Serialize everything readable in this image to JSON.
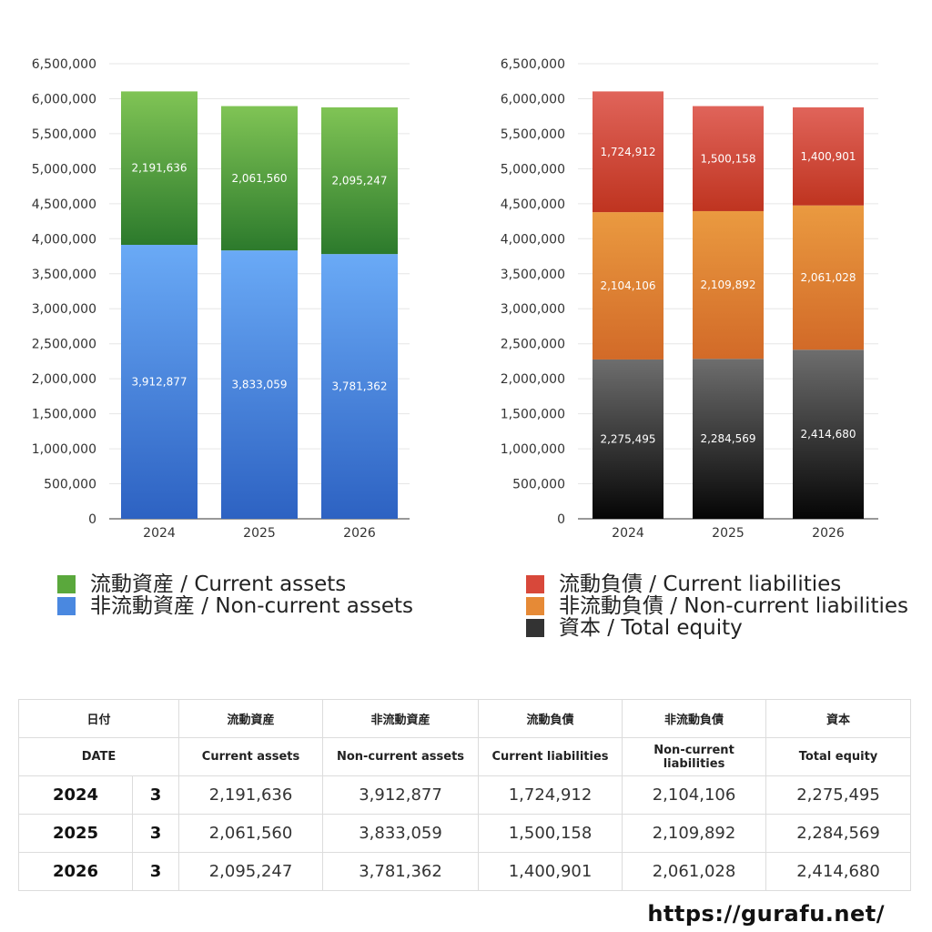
{
  "chart_data": [
    {
      "type": "bar",
      "stacked": true,
      "categories": [
        "2024",
        "2025",
        "2026"
      ],
      "ylim": [
        0,
        6500000
      ],
      "yticks": [
        0,
        500000,
        1000000,
        1500000,
        2000000,
        2500000,
        3000000,
        3500000,
        4000000,
        4500000,
        5000000,
        5500000,
        6000000,
        6500000
      ],
      "ytick_labels": [
        "0",
        "500,000",
        "1,000,000",
        "1,500,000",
        "2,000,000",
        "2,500,000",
        "3,000,000",
        "3,500,000",
        "4,000,000",
        "4,500,000",
        "5,000,000",
        "5,500,000",
        "6,000,000",
        "6,500,000"
      ],
      "grid": true,
      "legend_position": "bottom",
      "series": [
        {
          "name": "非流動資産 / Non-current assets",
          "values": [
            3912877,
            3833059,
            3781362
          ],
          "value_labels": [
            "3,912,877",
            "3,833,059",
            "3,781,362"
          ],
          "color_top": "#6aaaf6",
          "color_bottom": "#2d62c2"
        },
        {
          "name": "流動資産 / Current assets",
          "values": [
            2191636,
            2061560,
            2095247
          ],
          "value_labels": [
            "2,191,636",
            "2,061,560",
            "2,095,247"
          ],
          "color_top": "#80c455",
          "color_bottom": "#2c7a2c"
        }
      ]
    },
    {
      "type": "bar",
      "stacked": true,
      "categories": [
        "2024",
        "2025",
        "2026"
      ],
      "ylim": [
        0,
        6500000
      ],
      "yticks": [
        0,
        500000,
        1000000,
        1500000,
        2000000,
        2500000,
        3000000,
        3500000,
        4000000,
        4500000,
        5000000,
        5500000,
        6000000,
        6500000
      ],
      "ytick_labels": [
        "0",
        "500,000",
        "1,000,000",
        "1,500,000",
        "2,000,000",
        "2,500,000",
        "3,000,000",
        "3,500,000",
        "4,000,000",
        "4,500,000",
        "5,000,000",
        "5,500,000",
        "6,000,000",
        "6,500,000"
      ],
      "grid": true,
      "legend_position": "bottom",
      "series": [
        {
          "name": "資本 / Total equity",
          "values": [
            2275495,
            2284569,
            2414680
          ],
          "value_labels": [
            "2,275,495",
            "2,284,569",
            "2,414,680"
          ],
          "color_top": "#6e6e6e",
          "color_bottom": "#050505"
        },
        {
          "name": "非流動負債 / Non-current liabilities",
          "values": [
            2104106,
            2109892,
            2061028
          ],
          "value_labels": [
            "2,104,106",
            "2,109,892",
            "2,061,028"
          ],
          "color_top": "#ea9a40",
          "color_bottom": "#d26a28"
        },
        {
          "name": "流動負債 / Current liabilities",
          "values": [
            1724912,
            1500158,
            1400901
          ],
          "value_labels": [
            "1,724,912",
            "1,500,158",
            "1,400,901"
          ],
          "color_top": "#e0645a",
          "color_bottom": "#bf3420"
        }
      ]
    }
  ],
  "legend_left": [
    {
      "label": "流動資産 / Current assets",
      "color": "#5aa83c"
    },
    {
      "label": "非流動資産 / Non-current assets",
      "color": "#4a88e0"
    }
  ],
  "legend_right": [
    {
      "label": "流動負債 / Current liabilities",
      "color": "#d8483a"
    },
    {
      "label": "非流動負債 / Non-current liabilities",
      "color": "#e68a36"
    },
    {
      "label": "資本 / Total equity",
      "color": "#333333"
    }
  ],
  "table": {
    "header_jp": [
      "日付",
      "",
      "流動資産",
      "非流動資産",
      "流動負債",
      "非流動負債",
      "資本"
    ],
    "header_en": [
      "DATE",
      "",
      "Current assets",
      "Non-current assets",
      "Current liabilities",
      "Non-current liabilities",
      "Total equity"
    ],
    "rows": [
      [
        "2024",
        "3",
        "2,191,636",
        "3,912,877",
        "1,724,912",
        "2,104,106",
        "2,275,495"
      ],
      [
        "2025",
        "3",
        "2,061,560",
        "3,833,059",
        "1,500,158",
        "2,109,892",
        "2,284,569"
      ],
      [
        "2026",
        "3",
        "2,095,247",
        "3,781,362",
        "1,400,901",
        "2,061,028",
        "2,414,680"
      ]
    ]
  },
  "site_url": "https://gurafu.net/"
}
